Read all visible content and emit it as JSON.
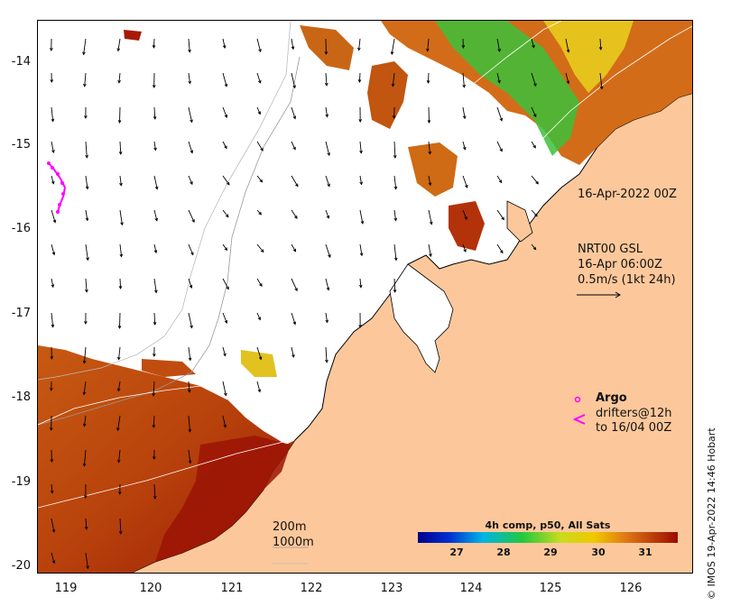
{
  "map": {
    "y_axis_ticks": [
      "-14",
      "-15",
      "-16",
      "-17",
      "-18",
      "-19",
      "-20"
    ],
    "x_axis_ticks": [
      "119",
      "120",
      "121",
      "122",
      "123",
      "124",
      "125",
      "126"
    ],
    "timestamp_label": "16-Apr-2022 00Z",
    "current_source": "NRT00 GSL",
    "current_time": "16-Apr 06:00Z",
    "current_scale": "0.5m/s (1kt 24h)",
    "argo_label": "Argo",
    "drifters_label_line1": "drifters@12h",
    "drifters_label_line2": "to 16/04 00Z",
    "isobath_200": "200m",
    "isobath_1000": "1000m",
    "colorbar_title": "4h comp, p50, All Sats",
    "colorbar_ticks": [
      "27",
      "28",
      "29",
      "30",
      "31"
    ],
    "credit": "© IMOS 19-Apr-2022 14:46 Hobart"
  },
  "colors": {
    "land": "#fcc89b",
    "argo": "#ff00ff",
    "sst_warm": "#b02a0a",
    "sst_mid": "#e07a1e",
    "sst_cool": "#2bbf3a"
  }
}
